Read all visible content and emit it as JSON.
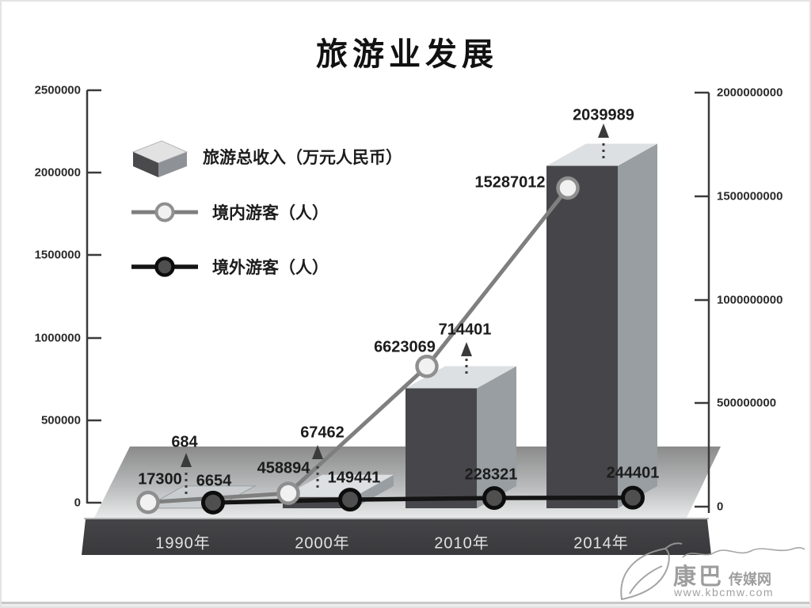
{
  "title": "旅游业发展",
  "legend": [
    {
      "label": "旅游总收入（万元人民币）",
      "marker": "bar-box-3d"
    },
    {
      "label": "境内游客（人）",
      "marker": "light-circle-line"
    },
    {
      "label": "境外游客（人）",
      "marker": "dark-circle-line"
    }
  ],
  "axes": {
    "left": {
      "ticks": [
        "2500000",
        "2000000",
        "1500000",
        "1000000",
        "500000",
        "0"
      ]
    },
    "right": {
      "ticks": [
        "2000000000",
        "1500000000",
        "1000000000",
        "500000000",
        "0"
      ]
    }
  },
  "chart_data": {
    "type": "bar",
    "subtype": "3d-bar-with-line-series",
    "title": "旅游业发展",
    "categories": [
      "1990年",
      "2000年",
      "2010年",
      "2014年"
    ],
    "series": [
      {
        "name": "旅游总收入（万元人民币）",
        "type": "bar",
        "axis": "left",
        "values": [
          684,
          67462,
          714401,
          2039989
        ]
      },
      {
        "name": "境内游客（人）",
        "type": "line",
        "axis": "right",
        "values": [
          17300,
          458894,
          6623069,
          15287012
        ]
      },
      {
        "name": "境外游客（人）",
        "type": "line",
        "axis": "right",
        "values": [
          6654,
          149441,
          228321,
          244401
        ]
      }
    ],
    "left_axis_range": [
      0,
      2500000
    ],
    "right_axis_range": [
      0,
      2000000000
    ],
    "line_plot_scale_on_right_axis": 100,
    "grid": false,
    "legend_position": "upper-left-inside",
    "colors": {
      "bar_front": "#47474b",
      "bar_side": "#989ea2",
      "bar_top": "#dde0e2",
      "domestic_line": "#7f7f7f",
      "foreign_line": "#141414",
      "floor_back": "#8c8c8c",
      "floor_front": "#eceded",
      "axis_band": "#3b3b3e"
    }
  },
  "watermark": {
    "name_main": "康巴",
    "name_rest": "传媒网",
    "url": "www.kbcmw.com"
  }
}
